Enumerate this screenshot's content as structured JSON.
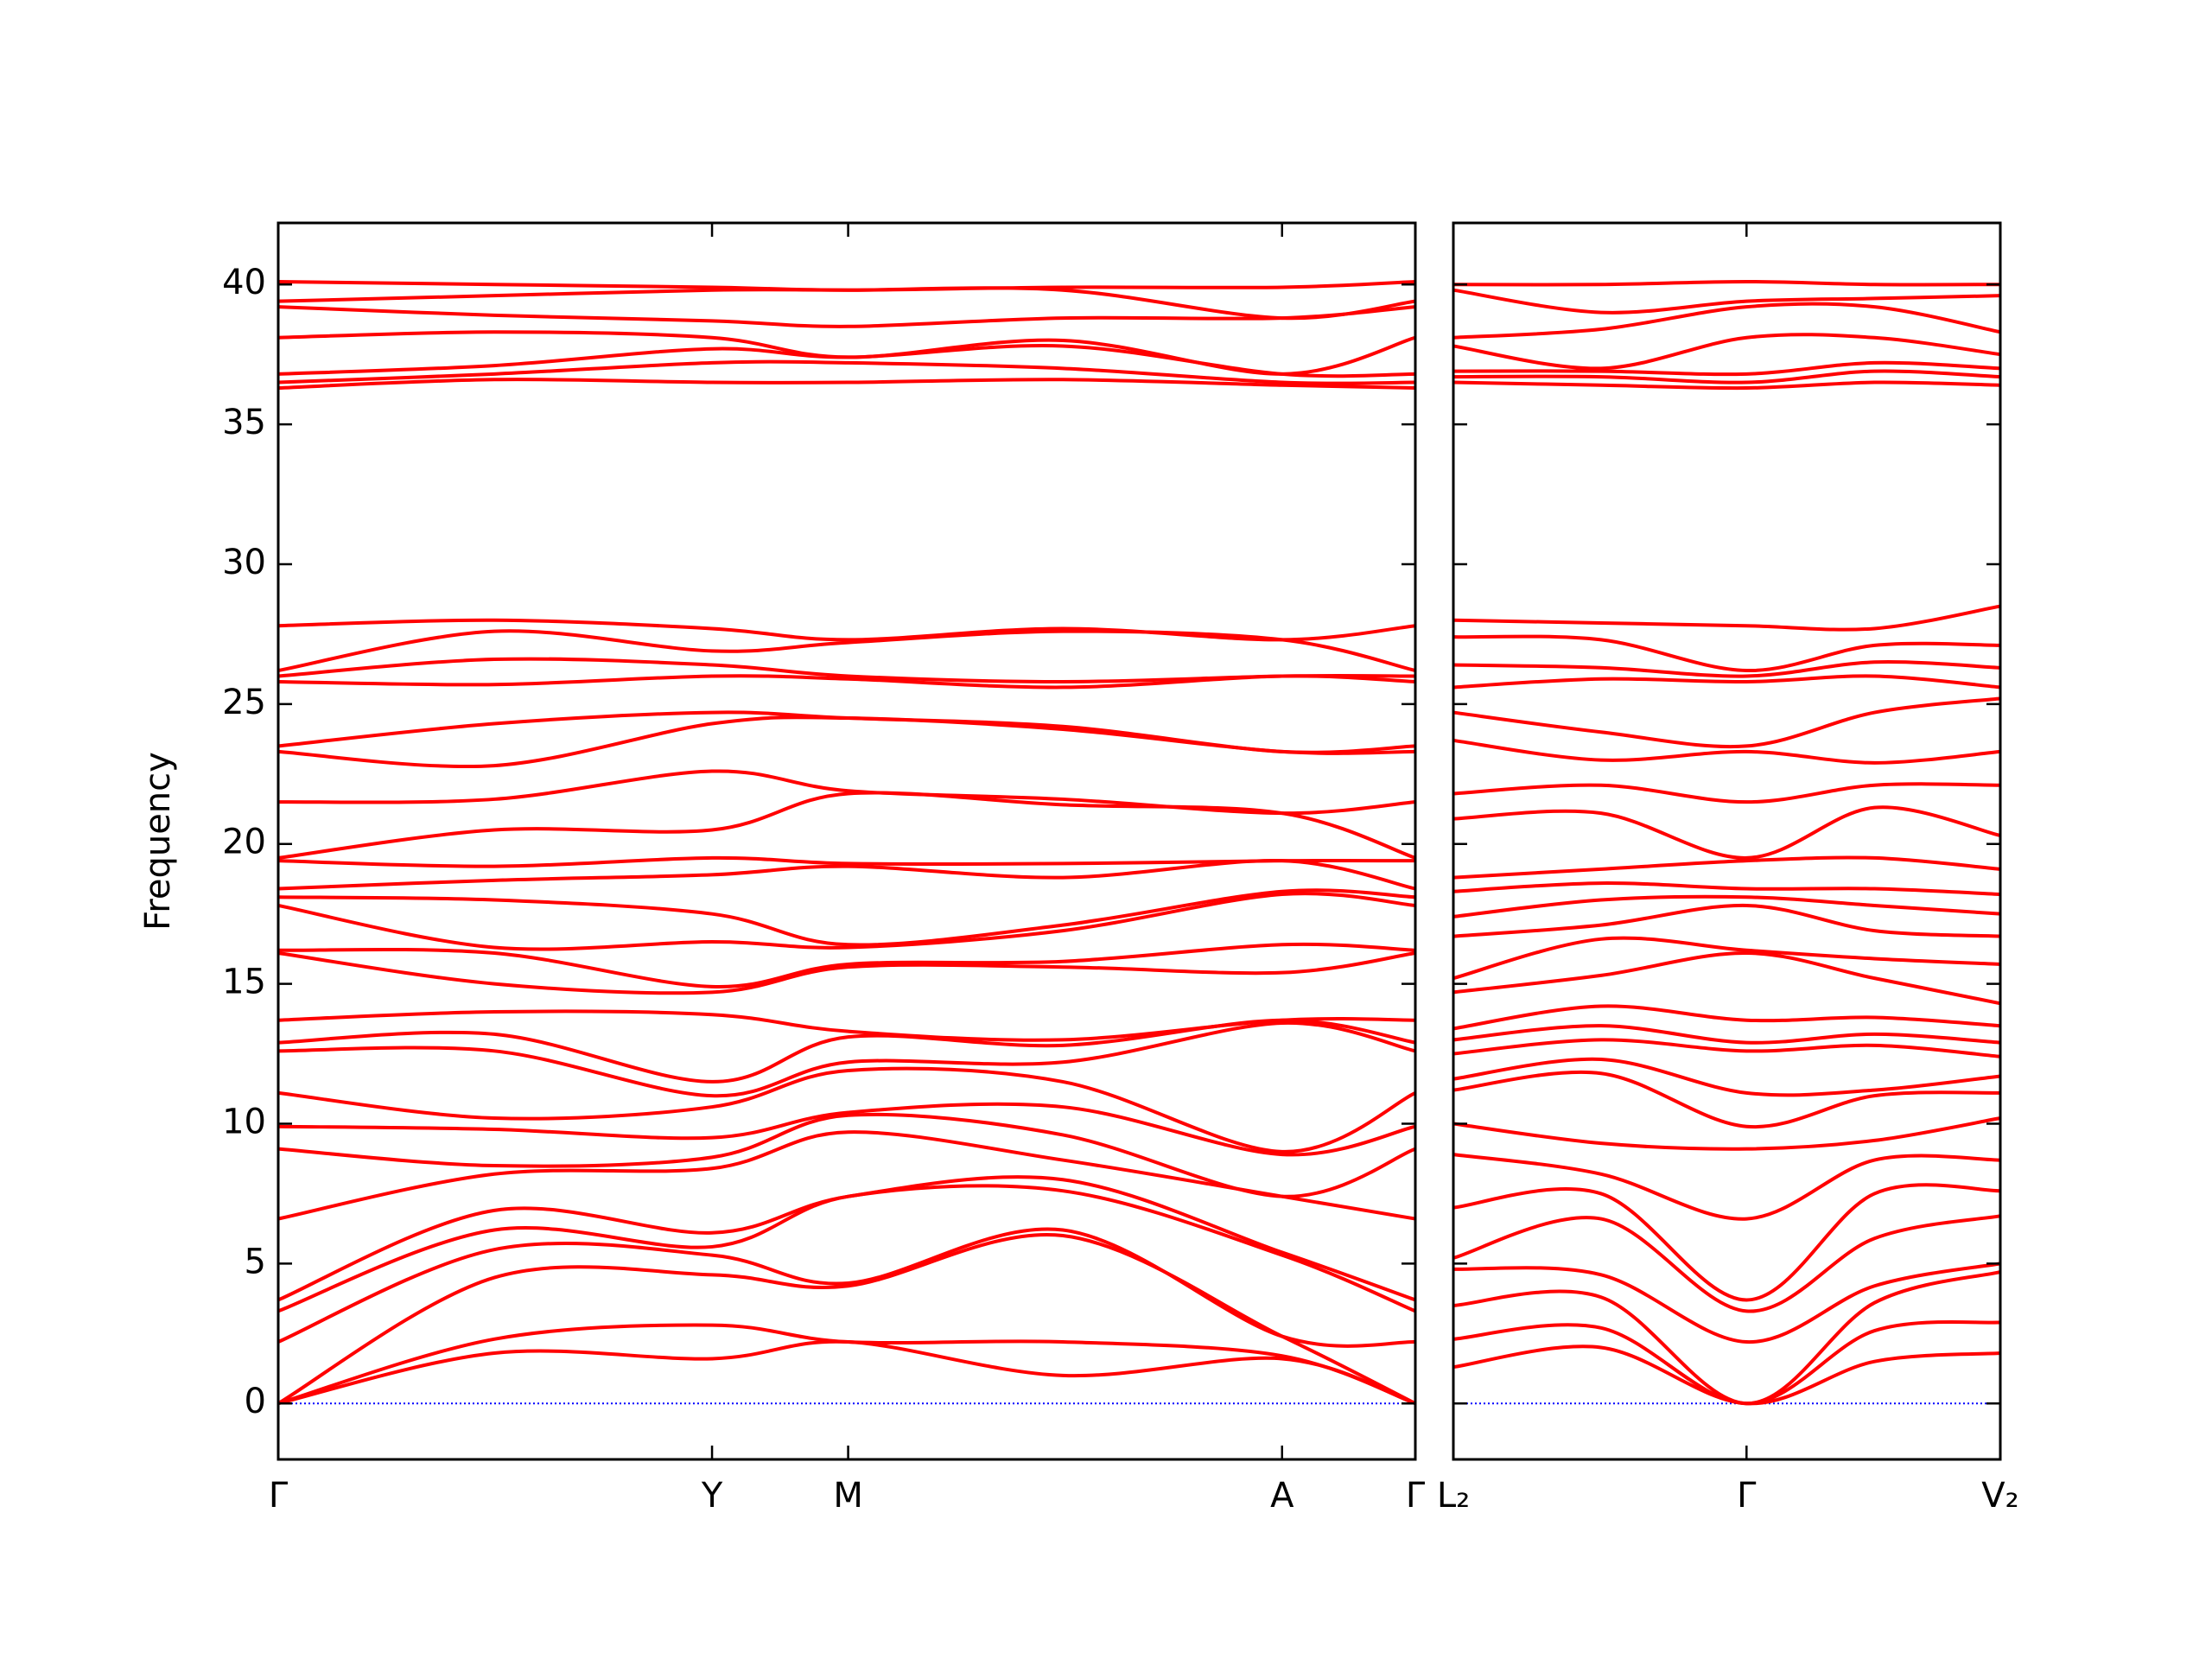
{
  "chart_data": [
    {
      "type": "line",
      "ylabel": "Frequency",
      "color": "#ff0000",
      "reference_line": {
        "value": 0,
        "color": "#0000ff"
      },
      "x": [
        0,
        0.19,
        0.3815,
        0.5012,
        0.69,
        0.8828,
        1
      ],
      "xlim": [
        0,
        1
      ],
      "xticks": [
        {
          "value": 0,
          "label": "Γ"
        },
        {
          "value": 0.3815,
          "label": "Y"
        },
        {
          "value": 0.5012,
          "label": "M"
        },
        {
          "value": 0.8828,
          "label": "A"
        },
        {
          "value": 1,
          "label": "Γ"
        }
      ],
      "ylim": [
        -2,
        42.2
      ],
      "yticks": [
        0,
        5,
        10,
        15,
        20,
        25,
        30,
        35,
        40
      ],
      "show_ytick_labels": true,
      "series": [
        {
          "values": [
            0,
            1.8,
            1.6,
            2.2,
            1.0,
            1.6,
            0
          ]
        },
        {
          "values": [
            0,
            2.3,
            2.8,
            2.2,
            2.2,
            1.7,
            0
          ]
        },
        {
          "values": [
            0,
            4.5,
            4.6,
            4.2,
            6.0,
            2.4,
            0
          ]
        },
        {
          "values": [
            2.2,
            5.5,
            5.3,
            4.3,
            6.2,
            2.4,
            2.2
          ]
        },
        {
          "values": [
            3.3,
            6.2,
            5.6,
            7.4,
            7.6,
            5.3,
            3.3
          ]
        },
        {
          "values": [
            3.7,
            6.9,
            6.1,
            7.4,
            8.0,
            5.4,
            3.7
          ]
        },
        {
          "values": [
            6.6,
            8.2,
            8.4,
            9.7,
            8.7,
            7.4,
            6.6
          ]
        },
        {
          "values": [
            9.1,
            8.5,
            8.8,
            10.3,
            9.6,
            7.4,
            9.1
          ]
        },
        {
          "values": [
            9.9,
            9.8,
            9.5,
            10.4,
            10.6,
            8.9,
            9.9
          ]
        },
        {
          "values": [
            11.1,
            10.2,
            10.6,
            11.9,
            11.5,
            9.0,
            11.1
          ]
        },
        {
          "values": [
            12.6,
            12.6,
            11.0,
            12.2,
            12.2,
            13.6,
            12.6
          ]
        },
        {
          "values": [
            12.9,
            13.2,
            11.5,
            13.1,
            12.8,
            13.7,
            12.9
          ]
        },
        {
          "values": [
            13.7,
            14.0,
            13.9,
            13.3,
            13.0,
            13.7,
            13.7
          ]
        },
        {
          "values": [
            16.1,
            15.0,
            14.7,
            15.6,
            15.6,
            15.4,
            16.1
          ]
        },
        {
          "values": [
            16.2,
            16.1,
            14.9,
            15.7,
            15.8,
            16.4,
            16.2
          ]
        },
        {
          "values": [
            17.8,
            16.3,
            16.5,
            16.3,
            16.9,
            18.2,
            17.8
          ]
        },
        {
          "values": [
            18.1,
            18.0,
            17.5,
            16.4,
            17.1,
            18.3,
            18.1
          ]
        },
        {
          "values": [
            18.4,
            18.7,
            18.9,
            19.2,
            18.8,
            19.4,
            18.4
          ]
        },
        {
          "values": [
            19.4,
            19.2,
            19.5,
            19.3,
            19.3,
            19.4,
            19.4
          ]
        },
        {
          "values": [
            19.5,
            20.5,
            20.5,
            21.8,
            21.4,
            21.1,
            19.5
          ]
        },
        {
          "values": [
            21.5,
            21.6,
            22.6,
            21.9,
            21.6,
            21.1,
            21.5
          ]
        },
        {
          "values": [
            23.3,
            22.8,
            24.3,
            24.5,
            24.1,
            23.3,
            23.3
          ]
        },
        {
          "values": [
            23.5,
            24.3,
            24.7,
            24.5,
            24.2,
            23.3,
            23.5
          ]
        },
        {
          "values": [
            25.8,
            25.7,
            26.0,
            25.9,
            25.6,
            26.0,
            25.8
          ]
        },
        {
          "values": [
            26.0,
            26.6,
            26.4,
            26.0,
            25.8,
            26.0,
            26.0
          ]
        },
        {
          "values": [
            26.2,
            27.6,
            26.9,
            27.2,
            27.6,
            27.3,
            26.2
          ]
        },
        {
          "values": [
            27.8,
            28.0,
            27.7,
            27.3,
            27.7,
            27.3,
            27.8
          ]
        },
        {
          "values": [
            36.3,
            36.6,
            36.5,
            36.5,
            36.6,
            36.4,
            36.3
          ]
        },
        {
          "values": [
            36.5,
            36.8,
            37.2,
            37.2,
            37.0,
            36.5,
            36.5
          ]
        },
        {
          "values": [
            36.8,
            37.1,
            37.7,
            37.4,
            37.8,
            36.8,
            36.8
          ]
        },
        {
          "values": [
            38.1,
            38.3,
            38.1,
            37.4,
            38.0,
            36.8,
            38.1
          ]
        },
        {
          "values": [
            39.2,
            38.9,
            38.7,
            38.5,
            38.8,
            38.8,
            39.2
          ]
        },
        {
          "values": [
            39.4,
            39.6,
            39.8,
            39.8,
            39.8,
            38.8,
            39.4
          ]
        },
        {
          "values": [
            40.1,
            40.0,
            39.9,
            39.8,
            39.9,
            39.9,
            40.1
          ]
        }
      ]
    },
    {
      "type": "line",
      "color": "#ff0000",
      "reference_line": {
        "value": 0,
        "color": "#0000ff"
      },
      "x": [
        0,
        0.27,
        0.536,
        0.77,
        1
      ],
      "xlim": [
        0,
        1
      ],
      "xticks": [
        {
          "value": 0,
          "label": "L₂"
        },
        {
          "value": 0.536,
          "label": "Γ"
        },
        {
          "value": 1,
          "label": "V₂"
        }
      ],
      "ylim": [
        -2,
        42.2
      ],
      "yticks": [
        0,
        5,
        10,
        15,
        20,
        25,
        30,
        35,
        40
      ],
      "show_ytick_labels": false,
      "series": [
        {
          "values": [
            1.3,
            2.0,
            0,
            1.5,
            1.8
          ]
        },
        {
          "values": [
            2.3,
            2.7,
            0,
            2.6,
            2.9
          ]
        },
        {
          "values": [
            3.5,
            3.8,
            0,
            3.6,
            4.7
          ]
        },
        {
          "values": [
            4.8,
            4.6,
            2.2,
            4.2,
            5.0
          ]
        },
        {
          "values": [
            5.2,
            6.6,
            3.3,
            5.9,
            6.7
          ]
        },
        {
          "values": [
            7.0,
            7.5,
            3.7,
            7.5,
            7.6
          ]
        },
        {
          "values": [
            8.9,
            8.2,
            6.6,
            8.7,
            8.7
          ]
        },
        {
          "values": [
            10.0,
            9.3,
            9.1,
            9.4,
            10.2
          ]
        },
        {
          "values": [
            11.2,
            11.8,
            9.9,
            11.0,
            11.1
          ]
        },
        {
          "values": [
            11.6,
            12.3,
            11.1,
            11.2,
            11.7
          ]
        },
        {
          "values": [
            12.5,
            13.0,
            12.6,
            12.8,
            12.4
          ]
        },
        {
          "values": [
            13.0,
            13.5,
            12.9,
            13.2,
            12.9
          ]
        },
        {
          "values": [
            13.4,
            14.2,
            13.7,
            13.8,
            13.5
          ]
        },
        {
          "values": [
            14.7,
            15.3,
            16.1,
            15.2,
            14.3
          ]
        },
        {
          "values": [
            15.2,
            16.6,
            16.2,
            15.9,
            15.7
          ]
        },
        {
          "values": [
            16.7,
            17.1,
            17.8,
            16.9,
            16.7
          ]
        },
        {
          "values": [
            17.4,
            18.0,
            18.1,
            17.8,
            17.5
          ]
        },
        {
          "values": [
            18.3,
            18.6,
            18.4,
            18.4,
            18.2
          ]
        },
        {
          "values": [
            18.8,
            19.1,
            19.4,
            19.5,
            19.1
          ]
        },
        {
          "values": [
            20.9,
            21.1,
            19.5,
            21.3,
            20.3
          ]
        },
        {
          "values": [
            21.8,
            22.1,
            21.5,
            22.1,
            22.1
          ]
        },
        {
          "values": [
            23.7,
            23.0,
            23.3,
            22.9,
            23.3
          ]
        },
        {
          "values": [
            24.7,
            24.0,
            23.5,
            24.7,
            25.2
          ]
        },
        {
          "values": [
            25.6,
            25.9,
            25.8,
            26.0,
            25.6
          ]
        },
        {
          "values": [
            26.4,
            26.3,
            26.0,
            26.5,
            26.3
          ]
        },
        {
          "values": [
            27.4,
            27.3,
            26.2,
            27.1,
            27.1
          ]
        },
        {
          "values": [
            28.0,
            27.9,
            27.8,
            27.7,
            28.5
          ]
        },
        {
          "values": [
            36.5,
            36.4,
            36.3,
            36.5,
            36.4
          ]
        },
        {
          "values": [
            36.7,
            36.7,
            36.5,
            36.9,
            36.7
          ]
        },
        {
          "values": [
            36.9,
            36.9,
            36.8,
            37.2,
            37.0
          ]
        },
        {
          "values": [
            37.8,
            37.0,
            38.1,
            38.1,
            37.5
          ]
        },
        {
          "values": [
            38.1,
            38.4,
            39.2,
            39.2,
            38.3
          ]
        },
        {
          "values": [
            39.8,
            39.0,
            39.4,
            39.5,
            39.6
          ]
        },
        {
          "values": [
            40.0,
            40.0,
            40.1,
            40.0,
            40.0
          ]
        }
      ]
    }
  ]
}
